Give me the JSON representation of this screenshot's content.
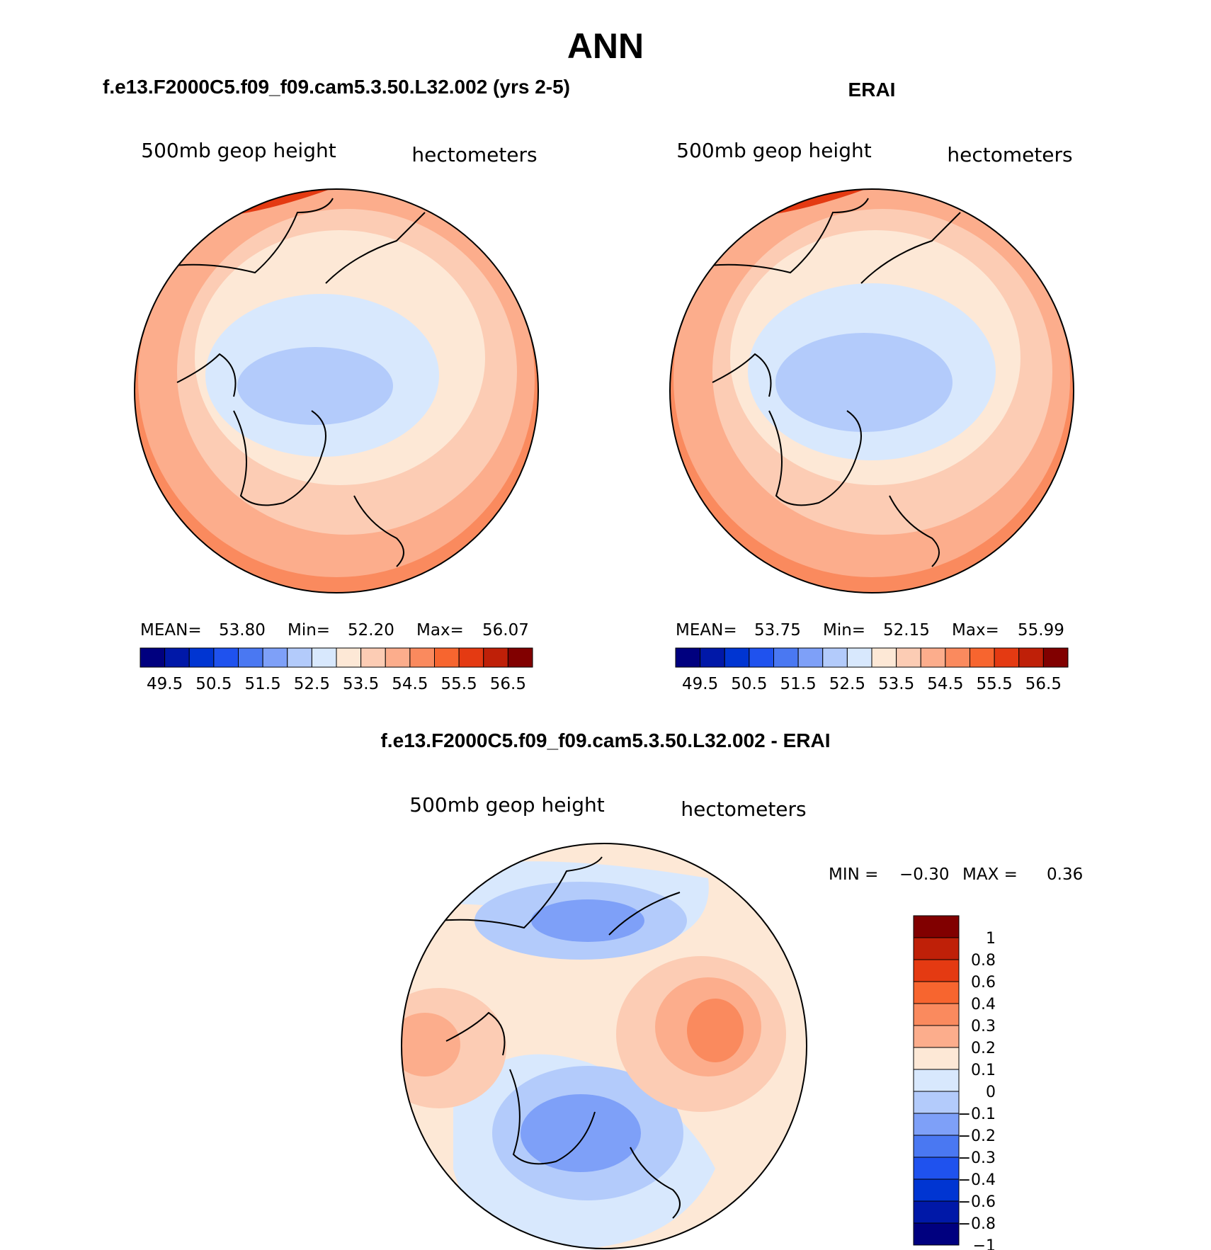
{
  "figure": {
    "title": "ANN"
  },
  "panels": [
    {
      "id": "model",
      "title": "f.e13.F2000C5.f09_f09.cam5.3.50.L32.002 (yrs 2-5)",
      "left_label": "500mb  geop  height",
      "right_label": "hectometers",
      "stats": {
        "mean_label": "MEAN=",
        "mean": "53.80",
        "min_label": "Min=",
        "min": "52.20",
        "max_label": "Max=",
        "max": "56.07"
      }
    },
    {
      "id": "obs",
      "title": "ERAI",
      "left_label": "500mb  geop  height",
      "right_label": "hectometers",
      "stats": {
        "mean_label": "MEAN=",
        "mean": "53.75",
        "min_label": "Min=",
        "min": "52.15",
        "max_label": "Max=",
        "max": "55.99"
      }
    },
    {
      "id": "diff",
      "title": "f.e13.F2000C5.f09_f09.cam5.3.50.L32.002 - ERAI",
      "left_label": "500mb  geop  height",
      "right_label": "hectometers",
      "stats": {
        "min_label": "MIN =",
        "min": "−0.30",
        "max_label": "MAX =",
        "max": "0.36"
      }
    }
  ],
  "colorbars": {
    "abs": {
      "colors": [
        "#00007f",
        "#0018a8",
        "#0035d2",
        "#1f52ee",
        "#4a78f2",
        "#7ea0f8",
        "#b3cbfb",
        "#d8e8fd",
        "#fde8d6",
        "#fcccb4",
        "#fcad8c",
        "#fa8a5e",
        "#f7652f",
        "#e43a12",
        "#bf2008",
        "#810000"
      ],
      "tick_labels": [
        "49.5",
        "50.5",
        "51.5",
        "52.5",
        "53.5",
        "54.5",
        "55.5",
        "56.5"
      ]
    },
    "diff": {
      "colors": [
        "#810000",
        "#bf2008",
        "#e43a12",
        "#f7652f",
        "#fa8a5e",
        "#fcad8c",
        "#fde8d6",
        "#d8e8fd",
        "#b3cbfb",
        "#7ea0f8",
        "#4a78f2",
        "#1f52ee",
        "#0035d2",
        "#0018a8",
        "#00007f"
      ],
      "tick_labels": [
        "1",
        "0.8",
        "0.6",
        "0.4",
        "0.3",
        "0.2",
        "0.1",
        "0",
        "−0.1",
        "−0.2",
        "−0.3",
        "−0.4",
        "−0.6",
        "−0.8",
        "−1"
      ]
    }
  },
  "chart_data": [
    {
      "type": "heatmap",
      "title": "f.e13.F2000C5.f09_f09.cam5.3.50.L32.002 (yrs 2-5)",
      "projection": "polar stereographic, Northern Hemisphere",
      "variable": "500mb geop height",
      "units": "hectometers",
      "mean": 53.8,
      "min": 52.2,
      "max": 56.07,
      "levels": [
        49.5,
        50.5,
        51.5,
        52.5,
        53.5,
        54.5,
        55.5,
        56.5
      ]
    },
    {
      "type": "heatmap",
      "title": "ERAI",
      "projection": "polar stereographic, Northern Hemisphere",
      "variable": "500mb geop height",
      "units": "hectometers",
      "mean": 53.75,
      "min": 52.15,
      "max": 55.99,
      "levels": [
        49.5,
        50.5,
        51.5,
        52.5,
        53.5,
        54.5,
        55.5,
        56.5
      ]
    },
    {
      "type": "heatmap",
      "title": "f.e13.F2000C5.f09_f09.cam5.3.50.L32.002 - ERAI",
      "projection": "polar stereographic, Northern Hemisphere",
      "variable": "500mb geop height",
      "units": "hectometers",
      "min": -0.3,
      "max": 0.36,
      "levels": [
        1,
        0.8,
        0.6,
        0.4,
        0.3,
        0.2,
        0.1,
        0,
        -0.1,
        -0.2,
        -0.3,
        -0.4,
        -0.6,
        -0.8,
        -1
      ]
    }
  ]
}
